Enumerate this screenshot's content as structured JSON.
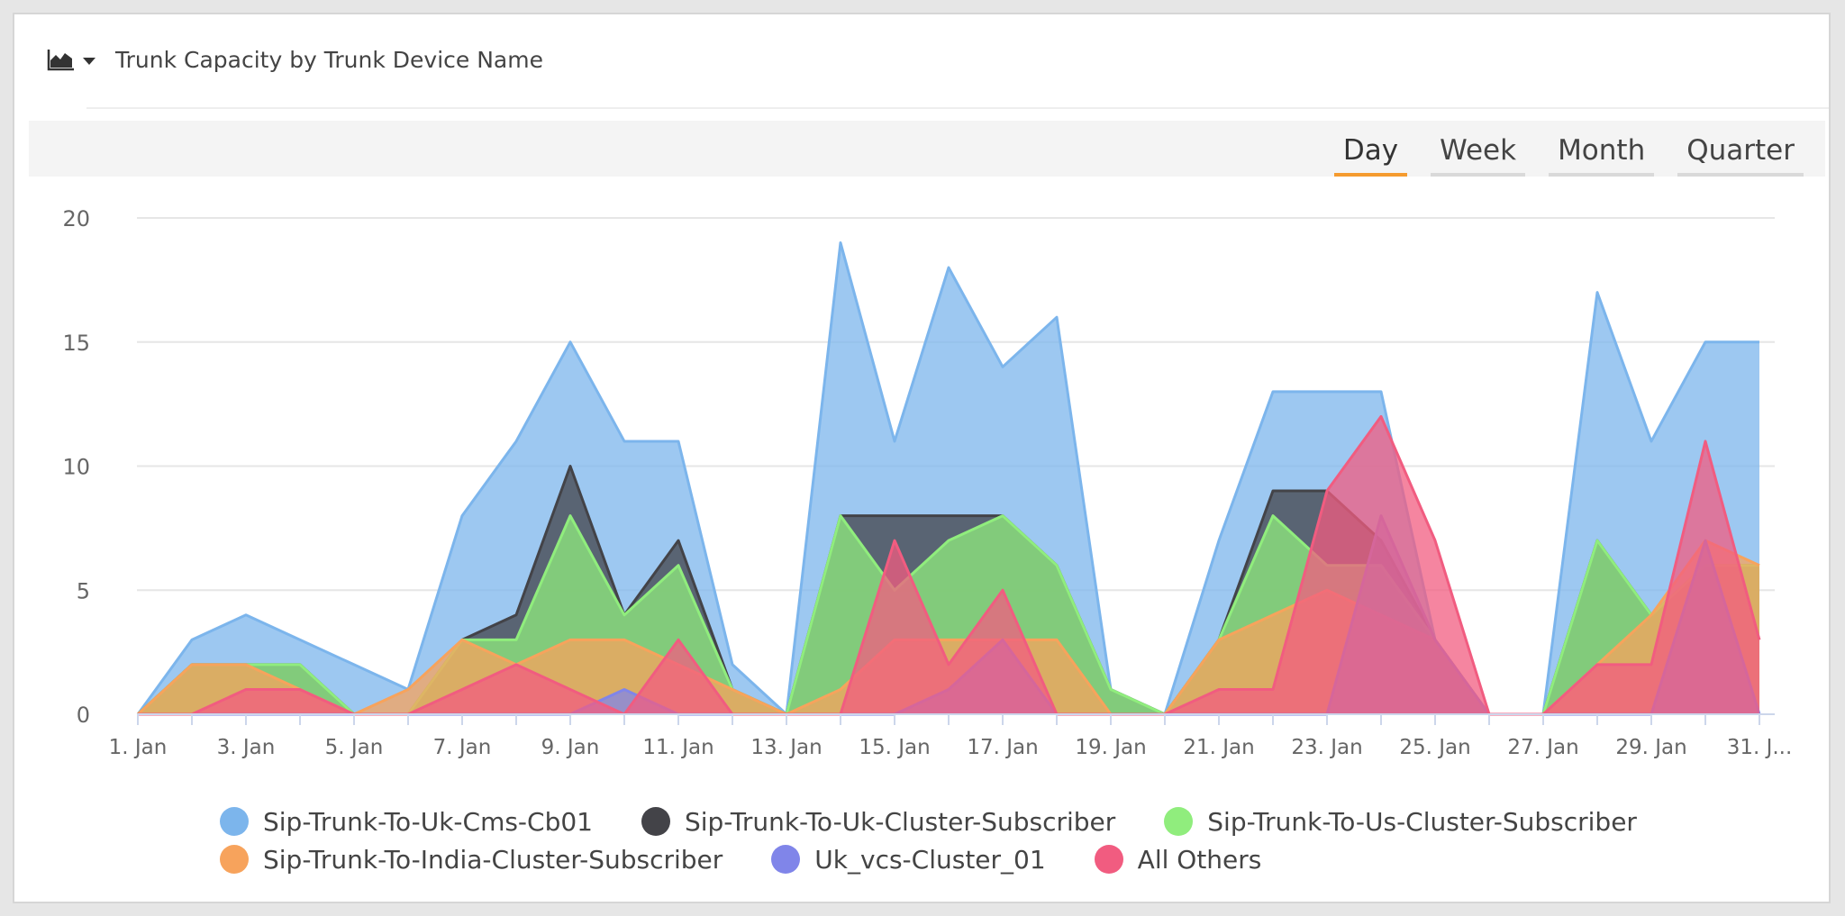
{
  "header": {
    "title": "Trunk Capacity by Trunk Device Name",
    "chart_icon": "area-chart-icon"
  },
  "period_tabs": [
    {
      "label": "Day",
      "active": true
    },
    {
      "label": "Week",
      "active": false
    },
    {
      "label": "Month",
      "active": false
    },
    {
      "label": "Quarter",
      "active": false
    }
  ],
  "colors": {
    "accent": "#f59b2f"
  },
  "chart_data": {
    "type": "area",
    "title": "Trunk Capacity by Trunk Device Name",
    "xlabel": "",
    "ylabel": "",
    "ylim": [
      0,
      20
    ],
    "yticks": [
      0,
      5,
      10,
      15,
      20
    ],
    "x_start_day": 1,
    "x": [
      "1. Jan",
      "2. Jan",
      "3. Jan",
      "4. Jan",
      "5. Jan",
      "6. Jan",
      "7. Jan",
      "8. Jan",
      "9. Jan",
      "10. Jan",
      "11. Jan",
      "12. Jan",
      "13. Jan",
      "14. Jan",
      "15. Jan",
      "16. Jan",
      "17. Jan",
      "18. Jan",
      "19. Jan",
      "20. Jan",
      "21. Jan",
      "22. Jan",
      "23. Jan",
      "24. Jan",
      "25. Jan",
      "26. Jan",
      "27. Jan",
      "28. Jan",
      "29. Jan",
      "30. Jan",
      "31. Jan"
    ],
    "xtick_labels": [
      "1. Jan",
      "3. Jan",
      "5. Jan",
      "7. Jan",
      "9. Jan",
      "11. Jan",
      "13. Jan",
      "15. Jan",
      "17. Jan",
      "19. Jan",
      "21. Jan",
      "23. Jan",
      "25. Jan",
      "27. Jan",
      "29. Jan",
      "31. J..."
    ],
    "grid": true,
    "legend_position": "bottom",
    "series": [
      {
        "name": "Sip-Trunk-To-Uk-Cms-Cb01",
        "color": "#7cb5ec",
        "values": [
          0,
          3,
          4,
          3,
          2,
          1,
          8,
          11,
          15,
          11,
          11,
          2,
          0,
          19,
          11,
          18,
          14,
          16,
          1,
          0,
          7,
          13,
          13,
          13,
          3,
          0,
          0,
          17,
          11,
          15,
          15
        ]
      },
      {
        "name": "Sip-Trunk-To-Uk-Cluster-Subscriber",
        "color": "#434348",
        "values": [
          0,
          2,
          2,
          2,
          0,
          0,
          3,
          4,
          10,
          4,
          7,
          1,
          0,
          8,
          8,
          8,
          8,
          6,
          1,
          0,
          3,
          9,
          9,
          7,
          3,
          0,
          0,
          7,
          4,
          6,
          6
        ]
      },
      {
        "name": "Sip-Trunk-To-Us-Cluster-Subscriber",
        "color": "#90ed7d",
        "values": [
          0,
          2,
          2,
          2,
          0,
          0,
          3,
          3,
          8,
          4,
          6,
          1,
          0,
          8,
          5,
          7,
          8,
          6,
          1,
          0,
          3,
          8,
          6,
          6,
          3,
          0,
          0,
          7,
          4,
          6,
          6
        ]
      },
      {
        "name": "Sip-Trunk-To-India-Cluster-Subscriber",
        "color": "#f7a35c",
        "values": [
          0,
          2,
          2,
          1,
          0,
          1,
          3,
          2,
          3,
          3,
          2,
          1,
          0,
          1,
          3,
          3,
          3,
          3,
          0,
          0,
          3,
          4,
          5,
          4,
          3,
          0,
          0,
          2,
          4,
          7,
          6
        ]
      },
      {
        "name": "Uk_vcs-Cluster_01",
        "color": "#8085e9",
        "values": [
          0,
          0,
          0,
          0,
          0,
          0,
          0,
          0,
          0,
          1,
          0,
          0,
          0,
          0,
          0,
          1,
          3,
          0,
          0,
          0,
          0,
          0,
          0,
          8,
          3,
          0,
          0,
          0,
          0,
          7,
          0
        ]
      },
      {
        "name": "All Others",
        "color": "#f15c80",
        "values": [
          0,
          0,
          1,
          1,
          0,
          0,
          1,
          2,
          1,
          0,
          3,
          0,
          0,
          0,
          7,
          2,
          5,
          0,
          0,
          0,
          1,
          1,
          9,
          12,
          7,
          0,
          0,
          2,
          2,
          11,
          3
        ]
      }
    ]
  }
}
